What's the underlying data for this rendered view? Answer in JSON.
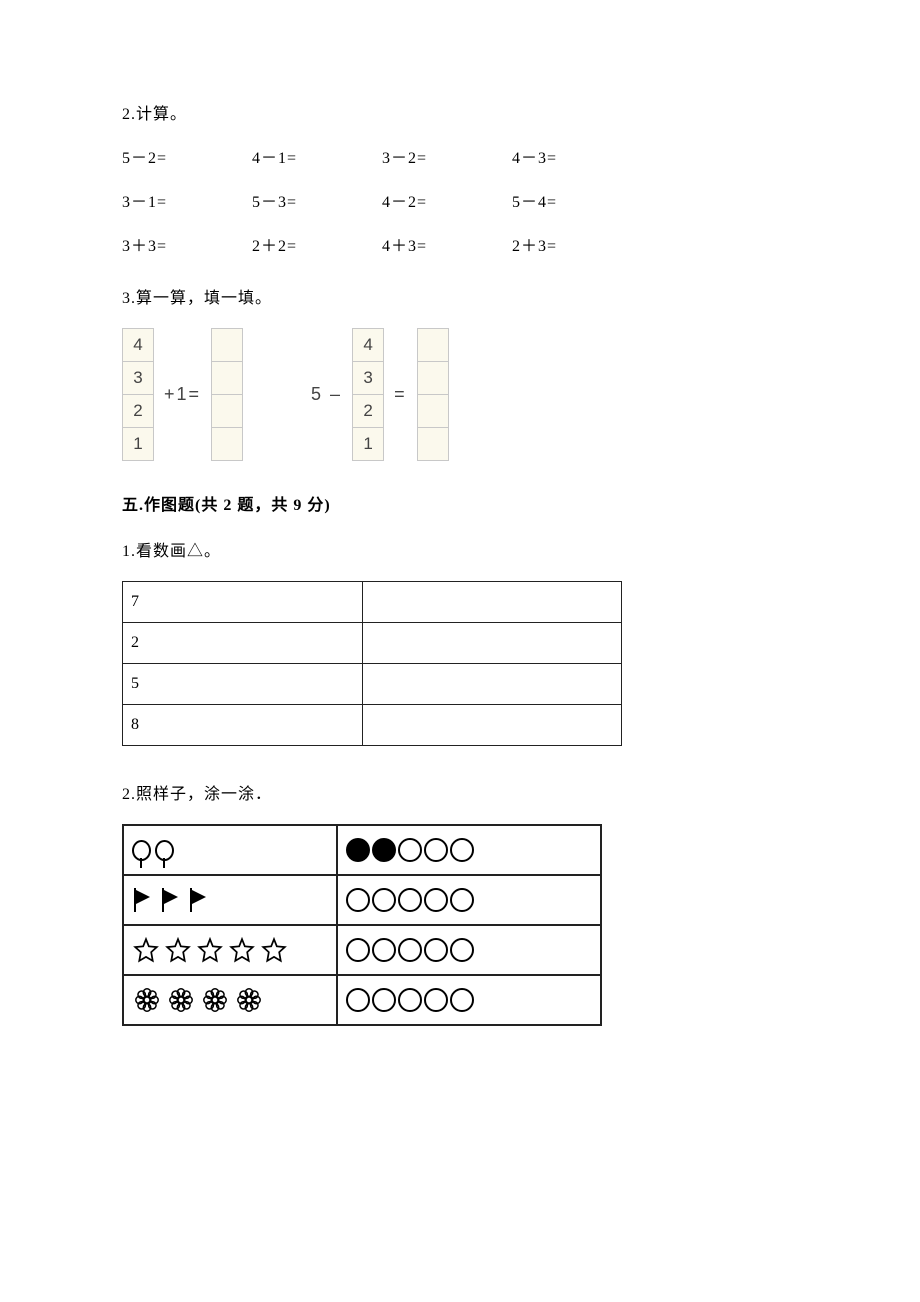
{
  "q2": {
    "label": "2.计算。",
    "rows": [
      [
        "5－2=",
        "4－1=",
        "3－2=",
        "4－3="
      ],
      [
        "3－1=",
        "5－3=",
        "4－2=",
        "5－4="
      ],
      [
        "3＋3=",
        "2＋2=",
        "4＋3=",
        "2＋3="
      ]
    ]
  },
  "q3": {
    "label": "3.算一算，填一填。",
    "left": {
      "in": [
        "4",
        "3",
        "2",
        "1"
      ],
      "op": "+1=",
      "out": [
        "",
        "",
        "",
        ""
      ]
    },
    "right": {
      "prefix": "5 –",
      "in": [
        "4",
        "3",
        "2",
        "1"
      ],
      "op": "=",
      "out": [
        "",
        "",
        "",
        ""
      ]
    },
    "cell_bg": "#fbf9ed",
    "cell_border": "#c8c8c8"
  },
  "sec5_title": "五.作图题(共 2 题，共 9 分)",
  "q5_1": {
    "label": "1.看数画△。",
    "rows": [
      [
        "7",
        ""
      ],
      [
        "2",
        ""
      ],
      [
        "5",
        ""
      ],
      [
        "8",
        ""
      ]
    ]
  },
  "q5_2": {
    "label": "2.照样子，涂一涂．",
    "rows": [
      {
        "icon": "balloon",
        "count": 2,
        "filled": 2
      },
      {
        "icon": "flag",
        "count": 3,
        "filled": 0
      },
      {
        "icon": "star",
        "count": 5,
        "filled": 0
      },
      {
        "icon": "flower",
        "count": 4,
        "filled": 0
      }
    ],
    "total_circles": 5
  },
  "colors": {
    "text": "#000000",
    "bg": "#ffffff"
  }
}
